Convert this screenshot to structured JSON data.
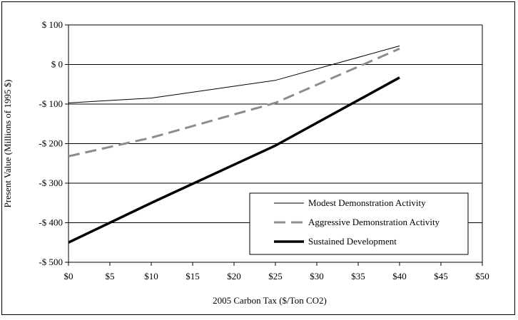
{
  "chart_data": {
    "type": "line",
    "xlabel": "2005 Carbon Tax ($/Ton CO2)",
    "ylabel": "Present Value (Millions of 1995 $)",
    "xlim": [
      0,
      50
    ],
    "ylim": [
      -500,
      100
    ],
    "x_ticks": [
      0,
      5,
      10,
      15,
      20,
      25,
      30,
      35,
      40,
      45,
      50
    ],
    "x_tick_labels": [
      "$0",
      "$5",
      "$10",
      "$15",
      "$20",
      "$25",
      "$30",
      "$35",
      "$40",
      "$45",
      "$50"
    ],
    "y_ticks": [
      100,
      0,
      -100,
      -200,
      -300,
      -400,
      -500
    ],
    "y_tick_labels": [
      "$ 100",
      "$ 0",
      "-$ 100",
      "-$ 200",
      "-$ 300",
      "-$ 400",
      "-$ 500"
    ],
    "grid": "horizontal",
    "legend_position": "bottom-right",
    "series": [
      {
        "name": "Modest Demonstration Activity",
        "color": "#000000",
        "style": "solid-thin",
        "x": [
          0,
          10,
          25,
          40
        ],
        "y": [
          -97,
          -85,
          -40,
          47
        ]
      },
      {
        "name": "Aggressive Demonstration Activity",
        "color": "#8c8c8c",
        "style": "dashed",
        "x": [
          0,
          10,
          25,
          40
        ],
        "y": [
          -232,
          -185,
          -97,
          40
        ]
      },
      {
        "name": "Sustained Development",
        "color": "#000000",
        "style": "solid-thick",
        "x": [
          0,
          10,
          25,
          40
        ],
        "y": [
          -450,
          -350,
          -205,
          -33
        ]
      }
    ]
  }
}
